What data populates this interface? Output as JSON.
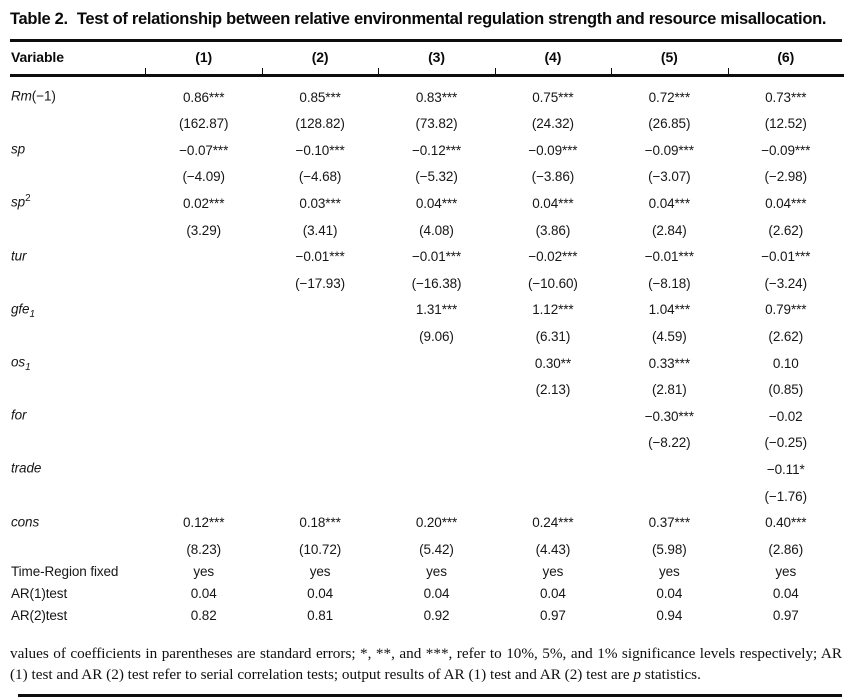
{
  "title": {
    "label": "Table 2.",
    "text": "Test of relationship between relative environmental regulation strength and resource misallocation."
  },
  "table": {
    "header": [
      "Variable",
      "(1)",
      "(2)",
      "(3)",
      "(4)",
      "(5)",
      "(6)"
    ],
    "rows": [
      {
        "label_main": "Rm",
        "label_suffix": "(−1)",
        "coef": [
          "0.86***",
          "0.85***",
          "0.83***",
          "0.75***",
          "0.72***",
          "0.73***"
        ],
        "stat": [
          "(162.87)",
          "(128.82)",
          "(73.82)",
          "(24.32)",
          "(26.85)",
          "(12.52)"
        ]
      },
      {
        "label_main": "sp",
        "coef": [
          "−0.07***",
          "−0.10***",
          "−0.12***",
          "−0.09***",
          "−0.09***",
          "−0.09***"
        ],
        "stat": [
          "(−4.09)",
          "(−4.68)",
          "(−5.32)",
          "(−3.86)",
          "(−3.07)",
          "(−2.98)"
        ]
      },
      {
        "label_main": "sp",
        "label_sup": "2",
        "coef": [
          "0.02***",
          "0.03***",
          "0.04***",
          "0.04***",
          "0.04***",
          "0.04***"
        ],
        "stat": [
          "(3.29)",
          "(3.41)",
          "(4.08)",
          "(3.86)",
          "(2.84)",
          "(2.62)"
        ]
      },
      {
        "label_main": "tur",
        "coef": [
          "",
          "−0.01***",
          "−0.01***",
          "−0.02***",
          "−0.01***",
          "−0.01***"
        ],
        "stat": [
          "",
          "(−17.93)",
          "(−16.38)",
          "(−10.60)",
          "(−8.18)",
          "(−3.24)"
        ]
      },
      {
        "label_main": "gfe",
        "label_sub": "1",
        "coef": [
          "",
          "",
          "1.31***",
          "1.12***",
          "1.04***",
          "0.79***"
        ],
        "stat": [
          "",
          "",
          "(9.06)",
          "(6.31)",
          "(4.59)",
          "(2.62)"
        ]
      },
      {
        "label_main": "os",
        "label_sub": "1",
        "coef": [
          "",
          "",
          "",
          "0.30**",
          "0.33***",
          "0.10"
        ],
        "stat": [
          "",
          "",
          "",
          "(2.13)",
          "(2.81)",
          "(0.85)"
        ]
      },
      {
        "label_main": "for",
        "coef": [
          "",
          "",
          "",
          "",
          "−0.30***",
          "−0.02"
        ],
        "stat": [
          "",
          "",
          "",
          "",
          "(−8.22)",
          "(−0.25)"
        ]
      },
      {
        "label_main": "trade",
        "coef": [
          "",
          "",
          "",
          "",
          "",
          "−0.11*"
        ],
        "stat": [
          "",
          "",
          "",
          "",
          "",
          "(−1.76)"
        ]
      },
      {
        "label_main": "cons",
        "coef": [
          "0.12***",
          "0.18***",
          "0.20***",
          "0.24***",
          "0.37***",
          "0.40***"
        ],
        "stat": [
          "(8.23)",
          "(10.72)",
          "(5.42)",
          "(4.43)",
          "(5.98)",
          "(2.86)"
        ]
      }
    ],
    "summary": [
      {
        "label": "Time-Region fixed",
        "values": [
          "yes",
          "yes",
          "yes",
          "yes",
          "yes",
          "yes"
        ]
      },
      {
        "label": "AR(1)test",
        "values": [
          "0.04",
          "0.04",
          "0.04",
          "0.04",
          "0.04",
          "0.04"
        ]
      },
      {
        "label": "AR(2)test",
        "values": [
          "0.82",
          "0.81",
          "0.92",
          "0.97",
          "0.94",
          "0.97"
        ]
      }
    ]
  },
  "footnote": {
    "part1": "values of coefficients in parentheses are standard errors; *, **, and ***, refer to 10%, 5%, and 1% significance levels respectively; AR (1) test and AR (2) test refer to serial correlation tests; output results of AR (1) test and AR (2) test are ",
    "p_italic": "p",
    "part2": " statistics."
  }
}
